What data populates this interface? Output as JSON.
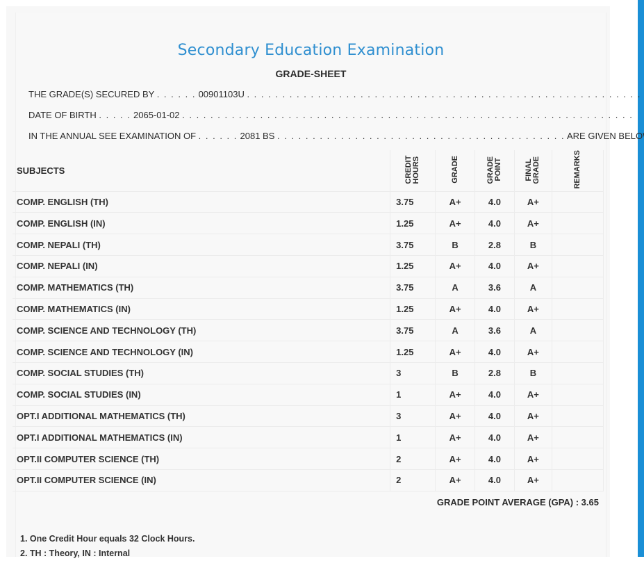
{
  "header": {
    "title": "Secondary Education Examination",
    "subtitle": "GRADE-SHEET"
  },
  "info": {
    "secured_by_label": "THE GRADE(S) SECURED BY",
    "secured_by_value": "00901103U",
    "dob_label": "DATE OF BIRTH",
    "dob_value": "2065-01-02",
    "exam_label": "IN THE ANNUAL SEE EXAMINATION OF",
    "exam_value": "2081 BS",
    "exam_suffix": "ARE GIVEN BELOW . . ."
  },
  "table": {
    "headers": {
      "subjects": "SUBJECTS",
      "credit_hours": "CREDIT HOURS",
      "grade": "GRADE",
      "grade_point": "GRADE POINT",
      "final_grade": "FINAL GRADE",
      "remarks": "REMARKS"
    },
    "rows": [
      {
        "subject": "COMP. ENGLISH (TH)",
        "credit": "3.75",
        "grade": "A+",
        "point": "4.0",
        "final": "A+"
      },
      {
        "subject": "COMP. ENGLISH (IN)",
        "credit": "1.25",
        "grade": "A+",
        "point": "4.0",
        "final": "A+"
      },
      {
        "subject": "COMP. NEPALI (TH)",
        "credit": "3.75",
        "grade": "B",
        "point": "2.8",
        "final": "B"
      },
      {
        "subject": "COMP. NEPALI (IN)",
        "credit": "1.25",
        "grade": "A+",
        "point": "4.0",
        "final": "A+"
      },
      {
        "subject": "COMP. MATHEMATICS (TH)",
        "credit": "3.75",
        "grade": "A",
        "point": "3.6",
        "final": "A"
      },
      {
        "subject": "COMP. MATHEMATICS (IN)",
        "credit": "1.25",
        "grade": "A+",
        "point": "4.0",
        "final": "A+"
      },
      {
        "subject": "COMP. SCIENCE AND TECHNOLOGY (TH)",
        "credit": "3.75",
        "grade": "A",
        "point": "3.6",
        "final": "A"
      },
      {
        "subject": "COMP. SCIENCE AND TECHNOLOGY (IN)",
        "credit": "1.25",
        "grade": "A+",
        "point": "4.0",
        "final": "A+"
      },
      {
        "subject": "COMP. SOCIAL STUDIES (TH)",
        "credit": "3",
        "grade": "B",
        "point": "2.8",
        "final": "B"
      },
      {
        "subject": "COMP. SOCIAL STUDIES (IN)",
        "credit": "1",
        "grade": "A+",
        "point": "4.0",
        "final": "A+"
      },
      {
        "subject": "OPT.I ADDITIONAL MATHEMATICS (TH)",
        "credit": "3",
        "grade": "A+",
        "point": "4.0",
        "final": "A+"
      },
      {
        "subject": "OPT.I ADDITIONAL MATHEMATICS (IN)",
        "credit": "1",
        "grade": "A+",
        "point": "4.0",
        "final": "A+"
      },
      {
        "subject": "OPT.II COMPUTER SCIENCE (TH)",
        "credit": "2",
        "grade": "A+",
        "point": "4.0",
        "final": "A+"
      },
      {
        "subject": "OPT.II COMPUTER SCIENCE (IN)",
        "credit": "2",
        "grade": "A+",
        "point": "4.0",
        "final": "A+"
      }
    ]
  },
  "gpa": "GRADE POINT AVERAGE (GPA) : 3.65",
  "notes": [
    "1. One Credit Hour equals 32 Clock Hours.",
    "2. TH : Theory, IN : Internal"
  ],
  "colors": {
    "accent": "#2f8fd0",
    "side_bar": "#1a8fd6"
  }
}
